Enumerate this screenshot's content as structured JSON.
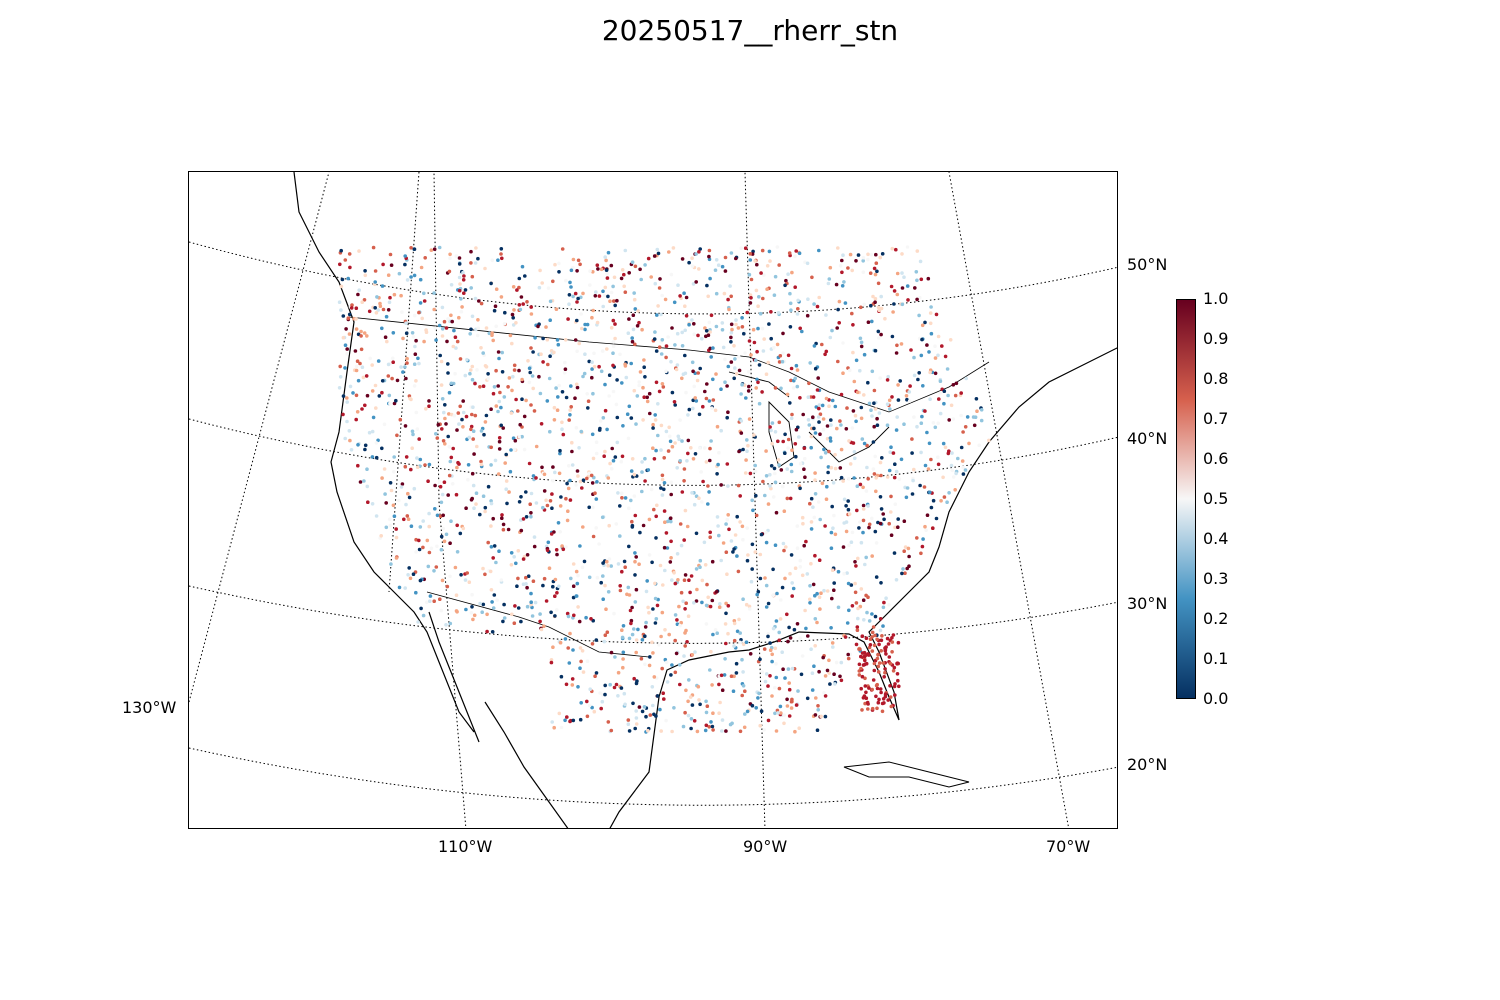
{
  "title": "20250517__rherr_stn",
  "map": {
    "projection": "lambert-conformal",
    "lat_labels": [
      "50°N",
      "40°N",
      "30°N",
      "20°N"
    ],
    "lon_labels": [
      "130°W",
      "110°W",
      "90°W",
      "70°W"
    ],
    "colormap": "red-white-blue diverging",
    "marker": "small dots at station locations"
  },
  "colorbar": {
    "ticks": [
      "1.0",
      "0.9",
      "0.8",
      "0.7",
      "0.6",
      "0.5",
      "0.4",
      "0.3",
      "0.2",
      "0.1",
      "0.0"
    ],
    "range": [
      0.0,
      1.0
    ],
    "colors": {
      "high": "#67001f",
      "upper": "#d6604d",
      "mid": "#f7f7f7",
      "lower": "#4393c3",
      "low": "#053061"
    }
  }
}
